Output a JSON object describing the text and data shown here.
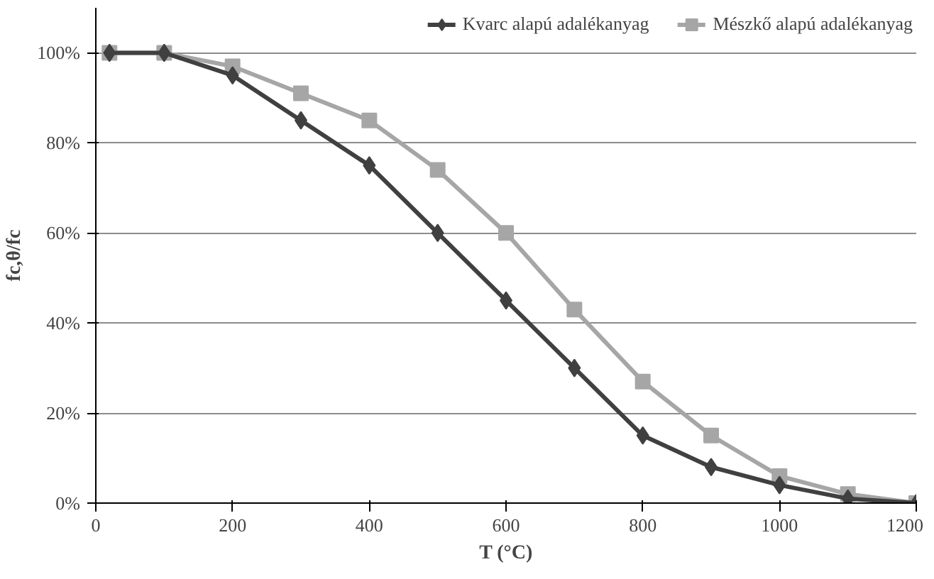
{
  "chart_data": {
    "type": "line",
    "xlabel": "T (°C)",
    "ylabel": "fc,θ/fc",
    "xlim": [
      0,
      1200
    ],
    "xticks": [
      0,
      200,
      400,
      600,
      800,
      1000,
      1200
    ],
    "ylim": [
      0,
      110
    ],
    "yticks": [
      {
        "value": 0,
        "label": "0%"
      },
      {
        "value": 20,
        "label": "20%"
      },
      {
        "value": 40,
        "label": "40%"
      },
      {
        "value": 60,
        "label": "60%"
      },
      {
        "value": 80,
        "label": "80%"
      },
      {
        "value": 100,
        "label": "100%"
      }
    ],
    "grid": "y",
    "legend": "top",
    "line_style": "solid",
    "x": [
      20,
      100,
      200,
      300,
      400,
      500,
      600,
      700,
      800,
      900,
      1000,
      1100,
      1200
    ],
    "series": [
      {
        "name": "Kvarc alapú adalékanyag",
        "color": "#404040",
        "marker": "diamond",
        "values": [
          100,
          100,
          95,
          85,
          75,
          60,
          45,
          30,
          15,
          8,
          4,
          1,
          0
        ]
      },
      {
        "name": "Mészkő alapú adalékanyag",
        "color": "#a6a6a6",
        "marker": "square",
        "values": [
          100,
          100,
          97,
          91,
          85,
          74,
          60,
          43,
          27,
          15,
          6,
          2,
          0
        ]
      }
    ]
  }
}
